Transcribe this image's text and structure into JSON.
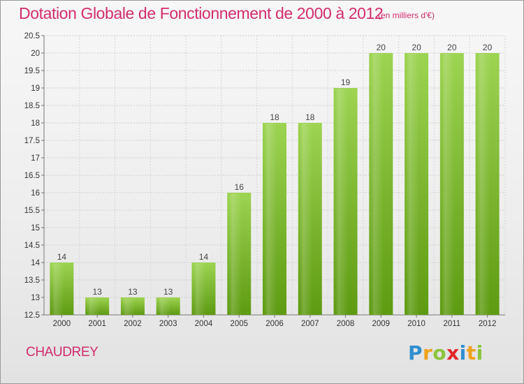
{
  "header": {
    "title": "Dotation Globale de Fonctionnement de 2000 à 2012",
    "unit": "(en milliers d'€)"
  },
  "footer": {
    "commune": "CHAUDREY",
    "brand": "Proxiti",
    "brand_letters": [
      {
        "ch": "P",
        "color": "#2f8fd0"
      },
      {
        "ch": "r",
        "color": "#f0a21e"
      },
      {
        "ch": "o",
        "color": "#8cc43c"
      },
      {
        "ch": "x",
        "color": "#e2262b"
      },
      {
        "ch": "i",
        "color": "#2f8fd0"
      },
      {
        "ch": "t",
        "color": "#f0a21e"
      },
      {
        "ch": "i",
        "color": "#8cc43c"
      }
    ]
  },
  "colors": {
    "accent": "#d12d6d",
    "bar_top": "#9dd452",
    "bar_bottom": "#5e9a12"
  },
  "chart_data": {
    "type": "bar",
    "title": "Dotation Globale de Fonctionnement de 2000 à 2012",
    "subtitle": "(en milliers d'€)",
    "categories": [
      "2000",
      "2001",
      "2002",
      "2003",
      "2004",
      "2005",
      "2006",
      "2007",
      "2008",
      "2009",
      "2010",
      "2011",
      "2012"
    ],
    "values": [
      14,
      13,
      13,
      13,
      14,
      16,
      18,
      18,
      19,
      20,
      20,
      20,
      20
    ],
    "data_labels": [
      "14",
      "13",
      "13",
      "13",
      "14",
      "16",
      "18",
      "18",
      "19",
      "20",
      "20",
      "20",
      "20"
    ],
    "ylim": [
      12.5,
      20.5
    ],
    "yticks": [
      12.5,
      13,
      13.5,
      14,
      14.5,
      15,
      15.5,
      16,
      16.5,
      17,
      17.5,
      18,
      18.5,
      19,
      19.5,
      20,
      20.5
    ],
    "ytick_labels": [
      "12.5",
      "13",
      "13.5",
      "14",
      "14.5",
      "15",
      "15.5",
      "16",
      "16.5",
      "17",
      "17.5",
      "18",
      "18.5",
      "19",
      "19.5",
      "20",
      "20.5"
    ],
    "grid": true,
    "legend": "none"
  }
}
